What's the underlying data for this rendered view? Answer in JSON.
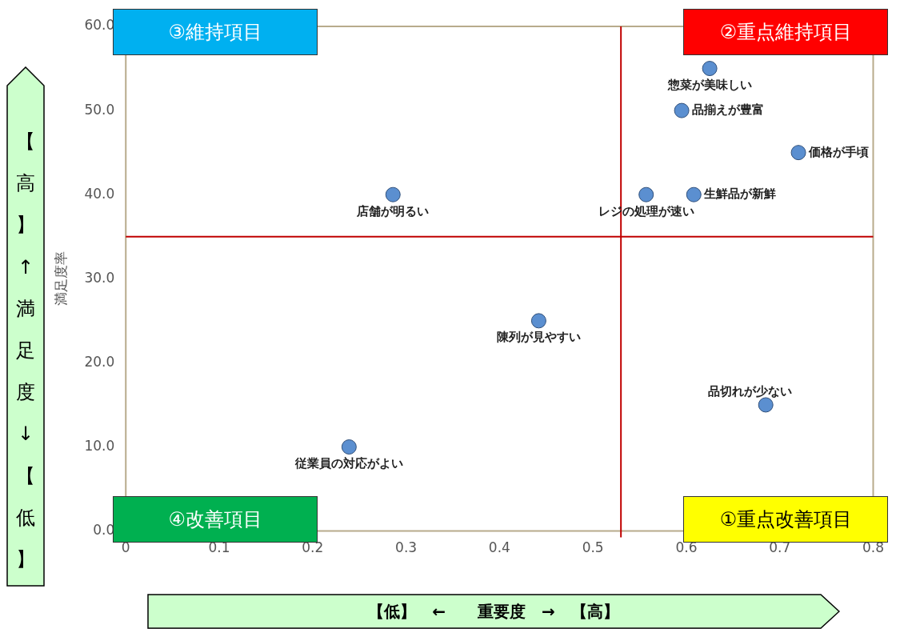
{
  "chart_data": {
    "type": "scatter",
    "ylabel": "満足度率",
    "xlabel": "【低】　←　　重要度　→　【高】",
    "series": [
      {
        "name": "惣菜が美味しい",
        "color": "#5b8fd0",
        "x": [
          0.625
        ],
        "values": [
          55
        ]
      },
      {
        "name": "品揃えが豊富",
        "color": "#5b8fd0",
        "x": [
          0.595
        ],
        "values": [
          50
        ]
      },
      {
        "name": "価格が手頃",
        "color": "#5b8fd0",
        "x": [
          0.72
        ],
        "values": [
          45
        ]
      },
      {
        "name": "生鮮品が新鮮",
        "color": "#5b8fd0",
        "x": [
          0.608
        ],
        "values": [
          40
        ]
      },
      {
        "name": "レジの処理が速い",
        "color": "#5b8fd0",
        "x": [
          0.557
        ],
        "values": [
          40
        ]
      },
      {
        "name": "店舗が明るい",
        "color": "#5b8fd0",
        "x": [
          0.286
        ],
        "values": [
          40
        ]
      },
      {
        "name": "陳列が見やすい",
        "color": "#5b8fd0",
        "x": [
          0.442
        ],
        "values": [
          25
        ]
      },
      {
        "name": "品切れが少ない",
        "color": "#5b8fd0",
        "x": [
          0.685
        ],
        "values": [
          15
        ]
      },
      {
        "name": "従業員の対応がよい",
        "color": "#5b8fd0",
        "x": [
          0.239
        ],
        "values": [
          10
        ]
      }
    ],
    "xlim": [
      0,
      0.8
    ],
    "xticks": [
      0,
      0.1,
      0.2,
      0.3,
      0.4,
      0.5,
      0.6,
      0.7,
      0.8
    ],
    "ylim": [
      0,
      60
    ],
    "yticks": [
      {
        "value": 0,
        "label": "0.0"
      },
      {
        "value": 10,
        "label": "10.0"
      },
      {
        "value": 20,
        "label": "20.0"
      },
      {
        "value": 30,
        "label": "30.0"
      },
      {
        "value": 40,
        "label": "40.0"
      },
      {
        "value": 50,
        "label": "50.0"
      },
      {
        "value": 60,
        "label": "60.0"
      }
    ],
    "ref_lines": [
      {
        "axis": "x",
        "value": 0.53,
        "color": "#c00000"
      },
      {
        "axis": "y",
        "value": 35,
        "color": "#c00000"
      }
    ],
    "annotations": [
      "③維持項目",
      "②重点維持項目",
      "④改善項目",
      "①重点改善項目",
      "【高】↑満足度↓【低】"
    ],
    "grid": false,
    "legend": false,
    "marker": "circle"
  }
}
